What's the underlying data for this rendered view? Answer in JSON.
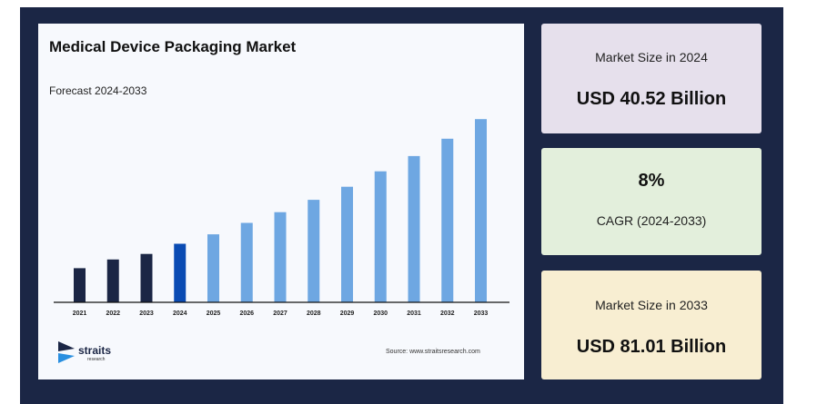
{
  "colors": {
    "frame": "#1b2645",
    "bar_historical": "#1b2645",
    "bar_base_year": "#0a4bb3",
    "bar_forecast": "#6ea7e2",
    "card_2024": "#e6e0ec",
    "card_cagr": "#e3efdc",
    "card_2033": "#f8eed2"
  },
  "chart": {
    "title": "Medical Device Packaging Market",
    "subtitle": "Forecast 2024-2033",
    "source": "Source: www.straitsresearch.com"
  },
  "logo": {
    "name": "straits",
    "sub": "research",
    "icon": "straits-logo-icon"
  },
  "chart_data": {
    "type": "bar",
    "title": "Medical Device Packaging Market",
    "subtitle": "Forecast 2024-2033",
    "categories": [
      "2021",
      "2022",
      "2023",
      "2024",
      "2025",
      "2026",
      "2027",
      "2028",
      "2029",
      "2030",
      "2031",
      "2032",
      "2033"
    ],
    "values": [
      37.6,
      47.2,
      53.3,
      64.5,
      74.9,
      87.5,
      99.3,
      112.9,
      127.3,
      144.3,
      161.1,
      180.2,
      201.8
    ],
    "value_scale": "relative (no y-axis shown)",
    "bar_groups": [
      "historical",
      "historical",
      "historical",
      "base-year",
      "forecast",
      "forecast",
      "forecast",
      "forecast",
      "forecast",
      "forecast",
      "forecast",
      "forecast",
      "forecast"
    ],
    "grid": false,
    "legend": "none"
  },
  "stats": {
    "size_2024": {
      "label": "Market Size in 2024",
      "value": "USD 40.52 Billion"
    },
    "cagr": {
      "value": "8%",
      "label": "CAGR (2024-2033)"
    },
    "size_2033": {
      "label": "Market Size in 2033",
      "value": "USD 81.01 Billion"
    }
  }
}
